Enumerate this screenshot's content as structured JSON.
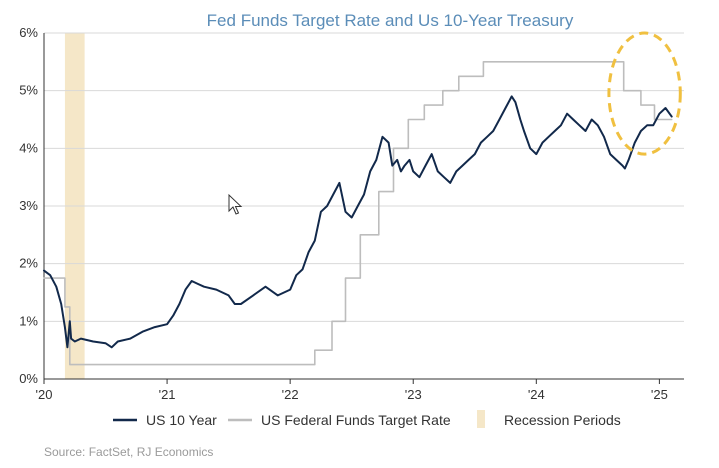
{
  "chart_data": {
    "type": "line",
    "title": "Fed Funds Target Rate and Us 10-Year Treasury",
    "source": "Source: FactSet, RJ Economics",
    "x_ticks": [
      {
        "label": "'20",
        "x": 2020.0
      },
      {
        "label": "'21",
        "x": 2021.0
      },
      {
        "label": "'22",
        "x": 2022.0
      },
      {
        "label": "'23",
        "x": 2023.0
      },
      {
        "label": "'24",
        "x": 2024.0
      },
      {
        "label": "'25",
        "x": 2025.0
      }
    ],
    "y_ticks": [
      {
        "label": "0%",
        "y": 0
      },
      {
        "label": "1%",
        "y": 1
      },
      {
        "label": "2%",
        "y": 2
      },
      {
        "label": "3%",
        "y": 3
      },
      {
        "label": "4%",
        "y": 4
      },
      {
        "label": "5%",
        "y": 5
      },
      {
        "label": "6%",
        "y": 6
      }
    ],
    "xlim": [
      2020.0,
      2025.2
    ],
    "ylim": [
      0,
      6
    ],
    "grid": "horizontal",
    "legend_position": "bottom",
    "recession": {
      "name": "Recession Periods",
      "start": 2020.17,
      "end": 2020.33,
      "color": "#f5e7c8"
    },
    "highlight": {
      "center_x": 2024.88,
      "center_y": 4.95,
      "rx_years": 0.29,
      "ry_pct": 1.05,
      "color": "#f0c040"
    },
    "series": [
      {
        "name": "US 10 Year",
        "color": "#12294b",
        "x": [
          2020.0,
          2020.05,
          2020.1,
          2020.14,
          2020.17,
          2020.19,
          2020.21,
          2020.22,
          2020.25,
          2020.3,
          2020.4,
          2020.5,
          2020.55,
          2020.6,
          2020.7,
          2020.8,
          2020.9,
          2021.0,
          2021.05,
          2021.1,
          2021.15,
          2021.2,
          2021.25,
          2021.3,
          2021.4,
          2021.5,
          2021.55,
          2021.6,
          2021.7,
          2021.8,
          2021.9,
          2022.0,
          2022.05,
          2022.1,
          2022.15,
          2022.2,
          2022.25,
          2022.3,
          2022.35,
          2022.4,
          2022.45,
          2022.5,
          2022.55,
          2022.6,
          2022.65,
          2022.7,
          2022.75,
          2022.8,
          2022.83,
          2022.87,
          2022.9,
          2022.93,
          2022.97,
          2023.0,
          2023.05,
          2023.1,
          2023.15,
          2023.2,
          2023.25,
          2023.3,
          2023.35,
          2023.4,
          2023.45,
          2023.5,
          2023.55,
          2023.6,
          2023.65,
          2023.7,
          2023.75,
          2023.8,
          2023.83,
          2023.87,
          2023.9,
          2023.95,
          2024.0,
          2024.05,
          2024.1,
          2024.15,
          2024.2,
          2024.25,
          2024.3,
          2024.35,
          2024.4,
          2024.45,
          2024.5,
          2024.55,
          2024.6,
          2024.65,
          2024.7,
          2024.72,
          2024.75,
          2024.8,
          2024.85,
          2024.9,
          2024.95,
          2025.0,
          2025.05,
          2025.1
        ],
        "y": [
          1.88,
          1.8,
          1.6,
          1.3,
          0.9,
          0.55,
          1.0,
          0.7,
          0.65,
          0.7,
          0.65,
          0.62,
          0.55,
          0.65,
          0.7,
          0.82,
          0.9,
          0.95,
          1.1,
          1.3,
          1.55,
          1.7,
          1.65,
          1.6,
          1.55,
          1.45,
          1.3,
          1.3,
          1.45,
          1.6,
          1.45,
          1.55,
          1.8,
          1.9,
          2.2,
          2.4,
          2.9,
          3.0,
          3.2,
          3.4,
          2.9,
          2.8,
          3.0,
          3.2,
          3.6,
          3.8,
          4.2,
          4.1,
          3.7,
          3.8,
          3.6,
          3.7,
          3.8,
          3.6,
          3.5,
          3.7,
          3.9,
          3.6,
          3.5,
          3.4,
          3.6,
          3.7,
          3.8,
          3.9,
          4.1,
          4.2,
          4.3,
          4.5,
          4.7,
          4.9,
          4.8,
          4.5,
          4.3,
          4.0,
          3.9,
          4.1,
          4.2,
          4.3,
          4.4,
          4.6,
          4.5,
          4.4,
          4.3,
          4.5,
          4.4,
          4.2,
          3.9,
          3.8,
          3.7,
          3.65,
          3.8,
          4.1,
          4.3,
          4.4,
          4.4,
          4.6,
          4.7,
          4.55
        ]
      },
      {
        "name": "US Federal Funds Target Rate",
        "color": "#bdbdbd",
        "x": [
          2020.0,
          2020.17,
          2020.17,
          2020.21,
          2020.21,
          2022.2,
          2022.2,
          2022.34,
          2022.34,
          2022.45,
          2022.45,
          2022.57,
          2022.57,
          2022.72,
          2022.72,
          2022.84,
          2022.84,
          2022.96,
          2022.96,
          2023.09,
          2023.09,
          2023.24,
          2023.24,
          2023.37,
          2023.37,
          2023.57,
          2023.57,
          2024.71,
          2024.71,
          2024.85,
          2024.85,
          2024.96,
          2024.96,
          2025.1
        ],
        "y": [
          1.75,
          1.75,
          1.25,
          1.25,
          0.25,
          0.25,
          0.5,
          0.5,
          1.0,
          1.0,
          1.75,
          1.75,
          2.5,
          2.5,
          3.25,
          3.25,
          4.0,
          4.0,
          4.5,
          4.5,
          4.75,
          4.75,
          5.0,
          5.0,
          5.25,
          5.25,
          5.5,
          5.5,
          5.0,
          5.0,
          4.75,
          4.75,
          4.5,
          4.5
        ]
      }
    ]
  },
  "colors": {
    "title": "#5b8db8",
    "axis": "#333333",
    "grid": "#d9d9d9",
    "cursor": "#333333"
  },
  "cursor_icon": "arrow-cursor-icon"
}
